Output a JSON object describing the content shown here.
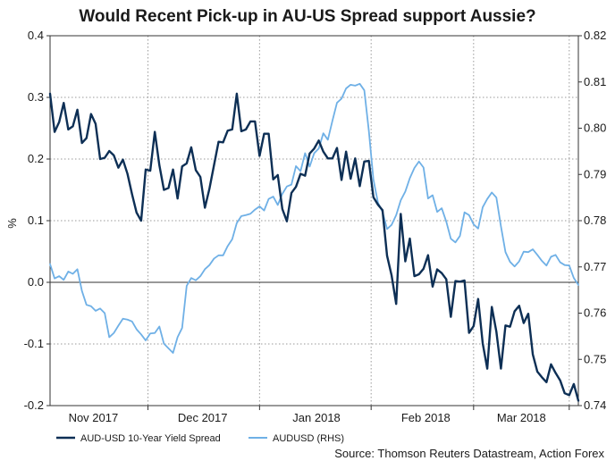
{
  "chart_data": {
    "type": "line",
    "title": "Would Recent Pick-up in AU-US Spread support Aussie?",
    "ylabel": "%",
    "ylim": [
      -0.2,
      0.4
    ],
    "y_ticks": [
      "0.4",
      "0.3",
      "0.2",
      "0.1",
      "0.0",
      "-0.1",
      "-0.2"
    ],
    "y2label": "",
    "y2lim": [
      0.74,
      0.82
    ],
    "y2_ticks": [
      "0.82",
      "0.81",
      "0.80",
      "0.79",
      "0.78",
      "0.77",
      "0.76",
      "0.75",
      "0.74"
    ],
    "x_ticks": [
      "Nov 2017",
      "Dec 2017",
      "Jan 2018",
      "Feb 2018",
      "Mar 2018"
    ],
    "x_tick_positions": [
      9.5,
      33.5,
      58.5,
      82.5,
      103.5
    ],
    "x_count": 117,
    "grid": true,
    "series": [
      {
        "name": "AUD-USD 10-Year Yield Spread",
        "axis": "left",
        "color": "#0d2f55",
        "values": [
          0.306,
          0.244,
          0.26,
          0.291,
          0.248,
          0.253,
          0.28,
          0.226,
          0.234,
          0.273,
          0.257,
          0.2,
          0.202,
          0.213,
          0.206,
          0.186,
          0.199,
          0.176,
          0.143,
          0.113,
          0.1,
          0.183,
          0.181,
          0.244,
          0.19,
          0.15,
          0.153,
          0.183,
          0.136,
          0.188,
          0.193,
          0.219,
          0.182,
          0.171,
          0.121,
          0.152,
          0.19,
          0.228,
          0.227,
          0.246,
          0.248,
          0.306,
          0.245,
          0.248,
          0.261,
          0.261,
          0.205,
          0.241,
          0.241,
          0.167,
          0.174,
          0.119,
          0.099,
          0.145,
          0.155,
          0.176,
          0.173,
          0.209,
          0.217,
          0.23,
          0.212,
          0.201,
          0.201,
          0.218,
          0.166,
          0.212,
          0.168,
          0.201,
          0.156,
          0.196,
          0.197,
          0.138,
          0.126,
          0.117,
          0.043,
          0.011,
          -0.035,
          0.111,
          0.034,
          0.071,
          0.01,
          0.013,
          0.022,
          0.044,
          -0.007,
          0.021,
          0.015,
          0.005,
          -0.056,
          0.002,
          0.001,
          0.003,
          -0.082,
          -0.071,
          -0.027,
          -0.099,
          -0.14,
          -0.04,
          -0.08,
          -0.14,
          -0.07,
          -0.072,
          -0.047,
          -0.038,
          -0.066,
          -0.051,
          -0.117,
          -0.145,
          -0.154,
          -0.162,
          -0.133,
          -0.147,
          -0.159,
          -0.18,
          -0.183,
          -0.165,
          -0.192
        ]
      },
      {
        "name": "AUDUSD (RHS)",
        "axis": "right",
        "color": "#6fb0e6",
        "values": [
          0.7706,
          0.7675,
          0.768,
          0.7672,
          0.769,
          0.7685,
          0.7695,
          0.7648,
          0.7618,
          0.7615,
          0.7605,
          0.761,
          0.76,
          0.7548,
          0.7557,
          0.7573,
          0.7588,
          0.7586,
          0.7582,
          0.7565,
          0.7554,
          0.7541,
          0.7556,
          0.7557,
          0.7571,
          0.7534,
          0.7524,
          0.7514,
          0.7548,
          0.7568,
          0.7659,
          0.7676,
          0.7671,
          0.768,
          0.7695,
          0.7704,
          0.7718,
          0.7725,
          0.7725,
          0.7745,
          0.776,
          0.7795,
          0.781,
          0.7812,
          0.7815,
          0.7824,
          0.7831,
          0.7822,
          0.7847,
          0.7852,
          0.7834,
          0.7858,
          0.7874,
          0.7878,
          0.7918,
          0.7907,
          0.7946,
          0.7917,
          0.7946,
          0.7956,
          0.7989,
          0.7975,
          0.8016,
          0.8055,
          0.8064,
          0.8086,
          0.8094,
          0.8092,
          0.8096,
          0.8082,
          0.7994,
          0.7889,
          0.7839,
          0.7819,
          0.7782,
          0.7791,
          0.7812,
          0.7844,
          0.7863,
          0.7892,
          0.7914,
          0.7928,
          0.7915,
          0.7848,
          0.7855,
          0.7819,
          0.7827,
          0.7798,
          0.7761,
          0.7753,
          0.7767,
          0.7818,
          0.7812,
          0.7792,
          0.7783,
          0.7829,
          0.7847,
          0.7861,
          0.785,
          0.7788,
          0.7732,
          0.7711,
          0.7701,
          0.7712,
          0.7733,
          0.7732,
          0.7738,
          0.7726,
          0.7713,
          0.7703,
          0.7722,
          0.7726,
          0.771,
          0.7704,
          0.7703,
          0.7676,
          0.7661
        ]
      }
    ]
  },
  "source_note": "Source: Thomson Reuters Datastream, Action Forex"
}
